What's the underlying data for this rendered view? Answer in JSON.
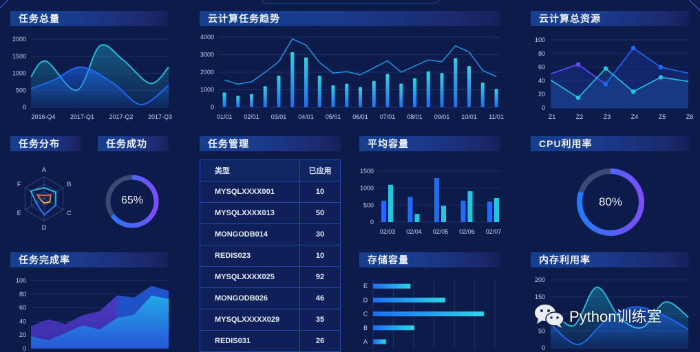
{
  "panels": {
    "total_tasks": {
      "title": "任务总量"
    },
    "cloud_trend": {
      "title": "云计算任务趋势"
    },
    "cloud_resources": {
      "title": "云计算总资源"
    },
    "task_distribution": {
      "title": "任务分布"
    },
    "task_success": {
      "title": "任务成功",
      "value_label": "65%"
    },
    "task_management": {
      "title": "任务管理"
    },
    "avg_capacity": {
      "title": "平均容量"
    },
    "cpu_usage": {
      "title": "CPU利用率",
      "value_label": "80%"
    },
    "task_completion": {
      "title": "任务完成率"
    },
    "storage_capacity": {
      "title": "存储容量"
    },
    "memory_usage": {
      "title": "内存利用率"
    }
  },
  "table": {
    "headers": [
      "类型",
      "已应用"
    ],
    "rows": [
      [
        "MYSQLXXXX001",
        "10"
      ],
      [
        "MYSQLXXXX013",
        "50"
      ],
      [
        "MONGODB014",
        "30"
      ],
      [
        "REDIS023",
        "10"
      ],
      [
        "MYSQLXXXX025",
        "92"
      ],
      [
        "MONGODB026",
        "46"
      ],
      [
        "MYSQLXXXXX029",
        "35"
      ],
      [
        "REDIS031",
        "26"
      ]
    ]
  },
  "watermark": {
    "text": "Python训练室",
    "icon": "wechat-icon"
  },
  "colors": {
    "background": "#0d1b4b",
    "cyan": "#22c7e0",
    "blue": "#1f6bff",
    "purple": "#6a4cff",
    "orange": "#e8823a",
    "yellow": "#f2b33d",
    "track": "#3a4a72"
  },
  "chart_data": [
    {
      "id": "total_tasks",
      "type": "area",
      "title": "任务总量",
      "categories": [
        "2016-Q4",
        "2017-Q1",
        "2017-Q2",
        "2017-Q3"
      ],
      "yticks": [
        0,
        500,
        1000,
        1500,
        2000
      ],
      "ylim": [
        0,
        2000
      ],
      "series": [
        {
          "name": "series-cyan",
          "x": [
            0,
            0.33,
            1.0,
            1.5,
            2.0,
            2.6,
            3.0
          ],
          "values": [
            900,
            1350,
            500,
            1800,
            1400,
            700,
            1180
          ]
        },
        {
          "name": "series-blue",
          "x": [
            0,
            0.5,
            1.1,
            1.8,
            2.4,
            3.0
          ],
          "values": [
            550,
            800,
            1180,
            700,
            80,
            650
          ]
        }
      ],
      "grid": true
    },
    {
      "id": "cloud_trend",
      "type": "bar+line",
      "title": "云计算任务趋势",
      "x_tick_labels": [
        "01/01",
        "02/01",
        "03/01",
        "04/01",
        "05/01",
        "06/01",
        "07/01",
        "08/01",
        "09/01",
        "10/01",
        "11/01"
      ],
      "yticks": [
        0,
        1000,
        2000,
        3000,
        4000
      ],
      "ylim": [
        0,
        4000
      ],
      "bar_values": [
        850,
        650,
        750,
        1200,
        1800,
        3150,
        2850,
        1800,
        1250,
        1350,
        1150,
        1500,
        1900,
        1350,
        1650,
        2050,
        1950,
        2800,
        2350,
        1400,
        1050
      ],
      "line_values": [
        1550,
        1320,
        1450,
        2000,
        2600,
        3900,
        3550,
        2550,
        1950,
        2030,
        1850,
        2250,
        2650,
        2000,
        2350,
        2700,
        2600,
        3500,
        3150,
        2100,
        1750
      ],
      "grid": true
    },
    {
      "id": "cloud_resources",
      "type": "line",
      "title": "云计算总资源",
      "categories": [
        "Z1",
        "Z2",
        "Z3",
        "Z4",
        "Z5",
        "Z6"
      ],
      "yticks": [
        0,
        20,
        40,
        60,
        80,
        100
      ],
      "ylim": [
        0,
        100
      ],
      "series": [
        {
          "name": "series-purple",
          "values": [
            50,
            64,
            35,
            null,
            null,
            null
          ]
        },
        {
          "name": "series-blue",
          "values": [
            null,
            null,
            35,
            88,
            60,
            51
          ]
        },
        {
          "name": "series-cyan",
          "values": [
            41,
            15,
            58,
            24,
            45,
            39
          ]
        }
      ],
      "grid": true
    },
    {
      "id": "task_distribution",
      "type": "radar",
      "title": "任务分布",
      "axes": [
        "A",
        "B",
        "C",
        "D",
        "E",
        "F"
      ],
      "max": 100,
      "series": [
        {
          "name": "outer-blue",
          "values": [
            50,
            60,
            60,
            75,
            40,
            70
          ]
        },
        {
          "name": "inner-orange",
          "values": [
            15,
            35,
            30,
            20,
            15,
            35
          ]
        }
      ]
    },
    {
      "id": "task_success",
      "type": "donut",
      "title": "任务成功",
      "value": 65,
      "label": "65%"
    },
    {
      "id": "task_completion",
      "type": "area",
      "title": "任务完成率",
      "yticks": [
        0,
        20,
        40,
        60,
        80,
        100
      ],
      "ylim": [
        0,
        100
      ],
      "series": [
        {
          "name": "series-purple",
          "values": [
            33,
            43,
            36,
            49,
            55,
            78,
            75,
            92,
            85
          ]
        },
        {
          "name": "series-cyan",
          "values": [
            18,
            12,
            23,
            34,
            28,
            45,
            50,
            78,
            73
          ]
        }
      ],
      "grid": true
    },
    {
      "id": "avg_capacity",
      "type": "bar",
      "title": "平均容量",
      "categories": [
        "02/03",
        "02/04",
        "02/05",
        "02/06",
        "02/07"
      ],
      "yticks": [
        0,
        500,
        1000,
        1500
      ],
      "ylim": [
        0,
        1500
      ],
      "series": [
        {
          "name": "series-blue",
          "values": [
            630,
            740,
            1300,
            630,
            600
          ]
        },
        {
          "name": "series-cyan",
          "values": [
            1100,
            240,
            480,
            910,
            710
          ]
        }
      ],
      "grid": true
    },
    {
      "id": "storage_capacity",
      "type": "bar-horizontal",
      "title": "存储容量",
      "categories": [
        "A",
        "B",
        "C",
        "D",
        "E"
      ],
      "values": [
        10,
        32,
        86,
        56,
        29
      ],
      "xlim": [
        0,
        100
      ],
      "grid": true
    },
    {
      "id": "cpu_usage",
      "type": "donut",
      "title": "CPU利用率",
      "value": 80,
      "label": "80%"
    },
    {
      "id": "memory_usage",
      "type": "area",
      "title": "内存利用率",
      "yticks": [
        0,
        50,
        100,
        150,
        200
      ],
      "ylim": [
        0,
        200
      ],
      "series": [
        {
          "name": "series-cyan",
          "values": [
            120,
            65,
            178,
            90,
            60,
            135,
            90
          ]
        },
        {
          "name": "series-blue",
          "values": [
            70,
            10,
            80,
            120,
            100,
            55
          ]
        }
      ],
      "grid": true
    }
  ]
}
